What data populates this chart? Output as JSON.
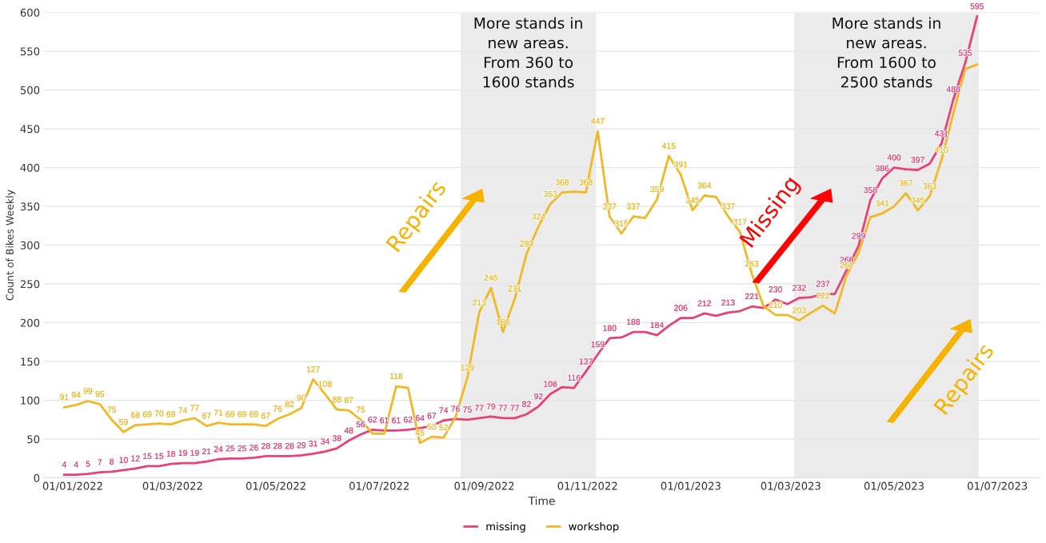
{
  "chart_data": {
    "type": "line",
    "xlabel": "Time",
    "ylabel": "Count of Bikes Weekly",
    "x": [
      "2021-12-27",
      "2022-01-03",
      "2022-01-10",
      "2022-01-17",
      "2022-01-24",
      "2022-01-31",
      "2022-02-07",
      "2022-02-14",
      "2022-02-21",
      "2022-02-28",
      "2022-03-07",
      "2022-03-14",
      "2022-03-21",
      "2022-03-28",
      "2022-04-04",
      "2022-04-11",
      "2022-04-18",
      "2022-04-25",
      "2022-05-02",
      "2022-05-09",
      "2022-05-16",
      "2022-05-23",
      "2022-05-30",
      "2022-06-06",
      "2022-06-13",
      "2022-06-20",
      "2022-06-27",
      "2022-07-04",
      "2022-07-11",
      "2022-07-18",
      "2022-07-25",
      "2022-08-01",
      "2022-08-08",
      "2022-08-15",
      "2022-08-22",
      "2022-08-29",
      "2022-09-05",
      "2022-09-12",
      "2022-09-19",
      "2022-09-26",
      "2022-10-03",
      "2022-10-10",
      "2022-10-17",
      "2022-10-24",
      "2022-10-31",
      "2022-11-07",
      "2022-11-14",
      "2022-11-21",
      "2022-11-28",
      "2022-12-05",
      "2022-12-12",
      "2022-12-19",
      "2022-12-26",
      "2023-01-02",
      "2023-01-09",
      "2023-01-16",
      "2023-01-23",
      "2023-01-30",
      "2023-02-06",
      "2023-02-13",
      "2023-02-20",
      "2023-02-27",
      "2023-03-06",
      "2023-03-13",
      "2023-03-20",
      "2023-03-27",
      "2023-04-03",
      "2023-04-10",
      "2023-04-17",
      "2023-04-24",
      "2023-05-01",
      "2023-05-08",
      "2023-05-15",
      "2023-05-22",
      "2023-05-29",
      "2023-06-05",
      "2023-06-12",
      "2023-06-19"
    ],
    "series": [
      {
        "name": "missing",
        "color": "#e8407a",
        "values": [
          4,
          4,
          5,
          7,
          8,
          10,
          12,
          15,
          15,
          18,
          19,
          19,
          21,
          24,
          25,
          25,
          26,
          28,
          28,
          28,
          29,
          31,
          34,
          38,
          48,
          56,
          62,
          61,
          61,
          62,
          64,
          67,
          74,
          76,
          75,
          77,
          79,
          77,
          77,
          82,
          92,
          108,
          117,
          116,
          137,
          159,
          180,
          181,
          188,
          188,
          184,
          196,
          206,
          206,
          212,
          209,
          213,
          215,
          221,
          219,
          230,
          224,
          232,
          233,
          237,
          237,
          268,
          299,
          358,
          386,
          400,
          398,
          397,
          405,
          431,
          488,
          535,
          595
        ],
        "value_labels": [
          "4",
          "4",
          "5",
          "7",
          "8",
          "10",
          "12",
          "15",
          "15",
          "18",
          "19",
          "19",
          "21",
          "24",
          "25",
          "25",
          "26",
          "28",
          "28",
          "28",
          "29",
          "31",
          "34",
          "38",
          "48",
          "56",
          "62",
          "61",
          "61",
          "62",
          "64",
          "67",
          "74",
          "76",
          "75",
          "77",
          "79",
          "77",
          "77",
          "82",
          "92",
          "108",
          null,
          "116",
          "137",
          "159",
          "180",
          null,
          "188",
          null,
          "184",
          null,
          "206",
          null,
          "212",
          null,
          "213",
          null,
          "221",
          null,
          "230",
          null,
          "232",
          null,
          "237",
          null,
          "268",
          "299",
          "358",
          "386",
          "400",
          null,
          "397",
          null,
          "431",
          "488",
          "535",
          "595"
        ]
      },
      {
        "name": "workshop",
        "color": "#f2b824",
        "values": [
          91,
          94,
          99,
          95,
          75,
          59,
          68,
          69,
          70,
          69,
          74,
          77,
          67,
          71,
          69,
          69,
          69,
          67,
          76,
          82,
          90,
          127,
          108,
          88,
          87,
          75,
          57,
          57,
          118,
          116,
          45,
          53,
          52,
          78,
          129,
          213,
          245,
          188,
          231,
          289,
          324,
          353,
          368,
          369,
          368,
          447,
          337,
          315,
          337,
          335,
          359,
          415,
          391,
          345,
          364,
          362,
          337,
          317,
          263,
          221,
          210,
          210,
          203,
          213,
          222,
          212,
          261,
          290,
          336,
          341,
          350,
          367,
          345,
          363,
          410,
          470,
          527,
          533
        ],
        "value_labels": [
          "91",
          "94",
          "99",
          "95",
          "75",
          "59",
          "68",
          "69",
          "70",
          "69",
          "74",
          "77",
          "67",
          "71",
          "69",
          "69",
          "69",
          "67",
          "76",
          "82",
          "90",
          "127",
          "108",
          "88",
          "87",
          "75",
          null,
          null,
          "118",
          null,
          "45",
          "53",
          "52",
          null,
          "129",
          "213",
          "245",
          "188",
          "231",
          "289",
          "324",
          "353",
          "368",
          null,
          "368",
          "447",
          "337",
          "315",
          "337",
          null,
          "359",
          "415",
          "391",
          "345",
          "364",
          null,
          "337",
          "317",
          "263",
          null,
          "210",
          null,
          "203",
          null,
          "222",
          null,
          "261",
          null,
          null,
          "341",
          null,
          "367",
          "345",
          "363",
          "410",
          null,
          null,
          null
        ]
      }
    ],
    "xlim": [
      "2021-12-15",
      "2023-07-26"
    ],
    "xticks": [
      {
        "value": "2022-01-01",
        "label": "01/01/2022"
      },
      {
        "value": "2022-03-01",
        "label": "01/03/2022"
      },
      {
        "value": "2022-05-01",
        "label": "01/05/2022"
      },
      {
        "value": "2022-07-01",
        "label": "01/07/2022"
      },
      {
        "value": "2022-09-01",
        "label": "01/09/2022"
      },
      {
        "value": "2022-11-01",
        "label": "01/11/2022"
      },
      {
        "value": "2023-01-01",
        "label": "01/01/2023"
      },
      {
        "value": "2023-03-01",
        "label": "01/03/2023"
      },
      {
        "value": "2023-05-01",
        "label": "01/05/2023"
      },
      {
        "value": "2023-07-01",
        "label": "01/07/2023"
      }
    ],
    "ylim": [
      0,
      600
    ],
    "yticks": [
      0,
      50,
      100,
      150,
      200,
      250,
      300,
      350,
      400,
      450,
      500,
      550,
      600
    ],
    "grid": "y",
    "legend": "bottom",
    "marker": "none",
    "line_style": "solid",
    "bands": [
      {
        "axis": "x",
        "from": "2022-08-18",
        "to": "2022-11-06",
        "label": "More stands in\nnew areas.\nFrom 360 to\n1600 stands",
        "color": "#ebebeb"
      },
      {
        "axis": "x",
        "from": "2023-03-03",
        "to": "2023-06-20",
        "label": "More stands in\nnew areas.\nFrom 1600 to\n2500 stands",
        "color": "#ebebeb"
      }
    ],
    "annotations": [
      "Repairs",
      "Missing",
      "Repairs"
    ]
  }
}
